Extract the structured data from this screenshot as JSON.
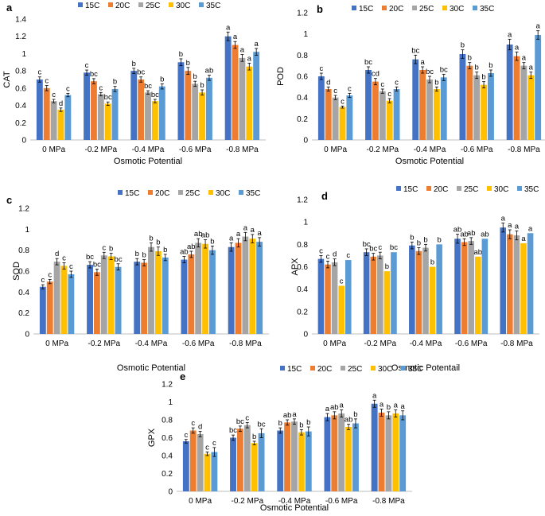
{
  "legend_colors": [
    "#4472C4",
    "#ED7D31",
    "#A5A5A5",
    "#FFC000",
    "#5B9BD5"
  ],
  "chart_data": [
    {
      "type": "bar",
      "panel": "a",
      "ylabel": "CAT",
      "xlabel": "Osmotic Potential",
      "categories": [
        "0 MPa",
        "-0.2 MPa",
        "-0.4 MPa",
        "-0.6 MPa",
        "-0.8 MPa"
      ],
      "legend": [
        "15C",
        "20C",
        "25C",
        "30C",
        "35C"
      ],
      "ylim": [
        0,
        1.4
      ],
      "ytick_step": 0.2,
      "yticks": [
        "0",
        "0.2",
        "0.4",
        "0.6",
        "0.8",
        "1",
        "1.2",
        "1.4"
      ],
      "series": [
        {
          "name": "15C",
          "values": [
            0.7,
            0.78,
            0.8,
            0.9,
            1.2
          ],
          "err": [
            0.03,
            0.03,
            0.03,
            0.04,
            0.05
          ],
          "letters": [
            "c",
            "c",
            "b",
            "b",
            "a"
          ]
        },
        {
          "name": "20C",
          "values": [
            0.6,
            0.68,
            0.7,
            0.8,
            1.1
          ],
          "err": [
            0.03,
            0.03,
            0.03,
            0.04,
            0.04
          ],
          "letters": [
            "c",
            "bc",
            "bc",
            "b",
            "a"
          ]
        },
        {
          "name": "25C",
          "values": [
            0.45,
            0.53,
            0.55,
            0.65,
            0.95
          ],
          "err": [
            0.02,
            0.02,
            0.02,
            0.03,
            0.04
          ],
          "letters": [
            "c",
            "c",
            "bc",
            "b",
            "a"
          ]
        },
        {
          "name": "30C",
          "values": [
            0.35,
            0.42,
            0.45,
            0.55,
            0.85
          ],
          "err": [
            0.02,
            0.02,
            0.02,
            0.03,
            0.04
          ],
          "letters": [
            "d",
            "bc",
            "bc",
            "b",
            "a"
          ]
        },
        {
          "name": "35C",
          "values": [
            0.52,
            0.59,
            0.62,
            0.72,
            1.02
          ],
          "err": [
            0.02,
            0.03,
            0.03,
            0.03,
            0.04
          ],
          "letters": [
            "c",
            "b",
            "b",
            "ab",
            "a"
          ]
        }
      ]
    },
    {
      "type": "bar",
      "panel": "b",
      "ylabel": "POD",
      "xlabel": "Osmotic Potential",
      "categories": [
        "0 MPa",
        "-0.2 MPa",
        "-0.4 MPa",
        "-0.6 MPa",
        "-0.8 MPa"
      ],
      "legend": [
        "15C",
        "20C",
        "25C",
        "30C",
        "35C"
      ],
      "ylim": [
        0,
        1.2
      ],
      "ytick_step": 0.2,
      "yticks": [
        "0",
        "0.2",
        "0.4",
        "0.6",
        "0.8",
        "1",
        "1.2"
      ],
      "series": [
        {
          "name": "15C",
          "values": [
            0.6,
            0.66,
            0.76,
            0.81,
            0.9
          ],
          "err": [
            0.03,
            0.03,
            0.04,
            0.04,
            0.05
          ],
          "letters": [
            "c",
            "bc",
            "bc",
            "b",
            "a"
          ]
        },
        {
          "name": "20C",
          "values": [
            0.48,
            0.55,
            0.66,
            0.7,
            0.79
          ],
          "err": [
            0.02,
            0.03,
            0.03,
            0.03,
            0.04
          ],
          "letters": [
            "d",
            "cd",
            "a",
            "b",
            "a"
          ]
        },
        {
          "name": "25C",
          "values": [
            0.4,
            0.46,
            0.57,
            0.61,
            0.7
          ],
          "err": [
            0.02,
            0.02,
            0.03,
            0.03,
            0.03
          ],
          "letters": [
            "c",
            "c",
            "bc",
            "b",
            "a"
          ]
        },
        {
          "name": "30C",
          "values": [
            0.31,
            0.37,
            0.48,
            0.52,
            0.61
          ],
          "err": [
            0.01,
            0.02,
            0.02,
            0.03,
            0.03
          ],
          "letters": [
            "c",
            "c",
            "b",
            "b",
            "a"
          ]
        },
        {
          "name": "35C",
          "values": [
            0.42,
            0.48,
            0.59,
            0.63,
            0.99
          ],
          "err": [
            0.02,
            0.02,
            0.03,
            0.03,
            0.04
          ],
          "letters": [
            "c",
            "c",
            "bc",
            "b",
            "a"
          ]
        }
      ]
    },
    {
      "type": "bar",
      "panel": "c",
      "ylabel": "SOD",
      "xlabel": "Osmotic Potential",
      "categories": [
        "0 MPa",
        "-0.2 MPa",
        "-0.4 MPa",
        "-0.6 MPa",
        "-0.8 MPa"
      ],
      "legend": [
        "15C",
        "20C",
        "25C",
        "30C",
        "35C"
      ],
      "ylim": [
        0,
        1.2
      ],
      "ytick_step": 0.2,
      "yticks": [
        "0",
        "0.2",
        "0.4",
        "0.6",
        "0.8",
        "1",
        "1.2"
      ],
      "series": [
        {
          "name": "15C",
          "values": [
            0.45,
            0.66,
            0.69,
            0.71,
            0.83
          ],
          "err": [
            0.02,
            0.03,
            0.03,
            0.03,
            0.04
          ],
          "letters": [
            "c",
            "bc",
            "b",
            "ab",
            "a"
          ]
        },
        {
          "name": "20C",
          "values": [
            0.5,
            0.59,
            0.68,
            0.76,
            0.87
          ],
          "err": [
            0.02,
            0.03,
            0.03,
            0.03,
            0.04
          ],
          "letters": [
            "c",
            "bc",
            "b",
            "ab",
            "a"
          ]
        },
        {
          "name": "25C",
          "values": [
            0.69,
            0.75,
            0.83,
            0.87,
            0.93
          ],
          "err": [
            0.03,
            0.03,
            0.04,
            0.04,
            0.04
          ],
          "letters": [
            "d",
            "c",
            "b",
            "ab",
            "a"
          ]
        },
        {
          "name": "30C",
          "values": [
            0.65,
            0.74,
            0.79,
            0.86,
            0.91
          ],
          "err": [
            0.03,
            0.03,
            0.04,
            0.04,
            0.04
          ],
          "letters": [
            "c",
            "b",
            "b",
            "ab",
            "a"
          ]
        },
        {
          "name": "35C",
          "values": [
            0.57,
            0.64,
            0.73,
            0.8,
            0.88
          ],
          "err": [
            0.03,
            0.03,
            0.03,
            0.04,
            0.04
          ],
          "letters": [
            "c",
            "bc",
            "b",
            "b",
            "a"
          ]
        }
      ]
    },
    {
      "type": "bar",
      "panel": "d",
      "ylabel": "APX",
      "xlabel": "Osmotic Potentail",
      "categories": [
        "0 MPa",
        "-0.2 MPa",
        "-0.4 MPa",
        "-0.6 MPa",
        "-0.8 MPa"
      ],
      "legend": [
        "15C",
        "20C",
        "25C",
        "30C",
        "35C"
      ],
      "ylim": [
        0,
        1.2
      ],
      "ytick_step": 0.2,
      "yticks": [
        "0",
        "0.2",
        "0.4",
        "0.6",
        "0.8",
        "1",
        "1.2"
      ],
      "series": [
        {
          "name": "15C",
          "values": [
            0.67,
            0.73,
            0.79,
            0.85,
            0.95
          ],
          "err": [
            0.03,
            0.03,
            0.03,
            0.04,
            0.04
          ],
          "letters": [
            "c",
            "bc",
            "b",
            "ab",
            "a"
          ]
        },
        {
          "name": "20C",
          "values": [
            0.62,
            0.69,
            0.74,
            0.82,
            0.89
          ],
          "err": [
            0.03,
            0.03,
            0.03,
            0.03,
            0.04
          ],
          "letters": [
            "c",
            "bc",
            "b",
            "ab",
            "a"
          ]
        },
        {
          "name": "25C",
          "values": [
            0.64,
            0.7,
            0.77,
            0.83,
            0.88
          ],
          "err": [
            0.03,
            0.03,
            0.03,
            0.03,
            0.04
          ],
          "letters": [
            "d",
            "c",
            "b",
            "ab",
            "a"
          ]
        },
        {
          "name": "30C",
          "values": [
            0.43,
            0.56,
            0.6,
            0.69,
            0.81
          ],
          "err": [
            0,
            0,
            0,
            0,
            0
          ],
          "letters": [
            "c",
            "b",
            "b",
            "ab",
            "a"
          ]
        },
        {
          "name": "35C",
          "values": [
            0.66,
            0.73,
            0.8,
            0.85,
            0.9
          ],
          "err": [
            0,
            0,
            0,
            0,
            0
          ],
          "letters": [
            "c",
            "bc",
            "b",
            "ab",
            "a"
          ]
        }
      ]
    },
    {
      "type": "bar",
      "panel": "e",
      "ylabel": "GPX",
      "xlabel": "Osmotic Potential",
      "categories": [
        "0 MPa",
        "-0.2 MPa",
        "-0.4 MPa",
        "-0.6 MPa",
        "-0.8 MPa"
      ],
      "legend": [
        "15C",
        "20C",
        "25C",
        "30C",
        "35C"
      ],
      "ylim": [
        0,
        1.2
      ],
      "ytick_step": 0.2,
      "yticks": [
        "0",
        "0.2",
        "0.4",
        "0.6",
        "0.8",
        "1",
        "1.2"
      ],
      "series": [
        {
          "name": "15C",
          "values": [
            0.56,
            0.6,
            0.68,
            0.83,
            0.98
          ],
          "err": [
            0.02,
            0.03,
            0.03,
            0.04,
            0.04
          ],
          "letters": [
            "c",
            "bc",
            "b",
            "a",
            "a"
          ]
        },
        {
          "name": "20C",
          "values": [
            0.68,
            0.7,
            0.77,
            0.85,
            0.88
          ],
          "err": [
            0.03,
            0.03,
            0.03,
            0.04,
            0.04
          ],
          "letters": [
            "c",
            "bc",
            "ab",
            "ab",
            "a"
          ]
        },
        {
          "name": "25C",
          "values": [
            0.64,
            0.74,
            0.78,
            0.87,
            0.85
          ],
          "err": [
            0.03,
            0.03,
            0.03,
            0.04,
            0.04
          ],
          "letters": [
            "d",
            "c",
            "a",
            "a",
            "b"
          ]
        },
        {
          "name": "30C",
          "values": [
            0.42,
            0.54,
            0.66,
            0.72,
            0.87
          ],
          "err": [
            0.02,
            0.02,
            0.03,
            0.03,
            0.04
          ],
          "letters": [
            "c",
            "b",
            "b",
            "ab",
            "a"
          ]
        },
        {
          "name": "35C",
          "values": [
            0.44,
            0.65,
            0.67,
            0.76,
            0.85
          ],
          "err": [
            0.05,
            0.05,
            0.05,
            0.05,
            0.05
          ],
          "letters": [
            "c",
            "bc",
            "b",
            "b",
            "a"
          ]
        }
      ]
    }
  ]
}
